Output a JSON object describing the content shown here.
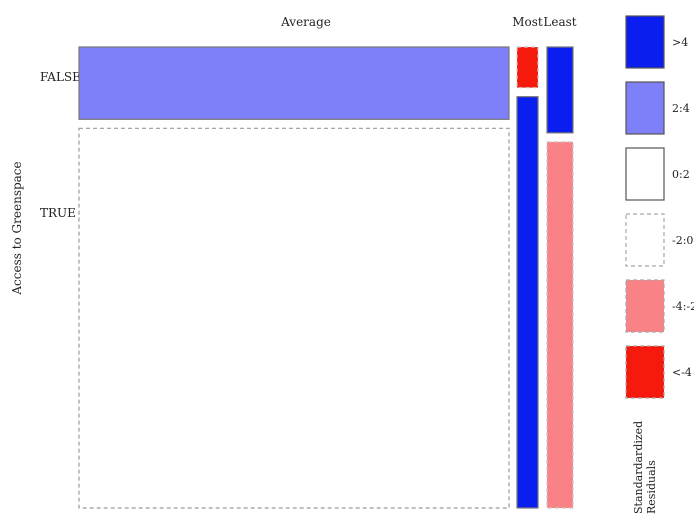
{
  "chart_data": {
    "type": "mosaic",
    "title": "",
    "xlabel": "",
    "ylabel": "Access to Greenspace",
    "x_categories": [
      "Average",
      "Most",
      "Least"
    ],
    "y_categories": [
      "FALSE",
      "TRUE"
    ],
    "column_widths": [
      0.88,
      0.04,
      0.05
    ],
    "cells": [
      {
        "x": "Average",
        "y": "FALSE",
        "proportion": 0.16,
        "residual_class": "2:4"
      },
      {
        "x": "Average",
        "y": "TRUE",
        "proportion": 0.84,
        "residual_class": "-2:0"
      },
      {
        "x": "Most",
        "y": "FALSE",
        "proportion": 0.09,
        "residual_class": "<-4"
      },
      {
        "x": "Most",
        "y": "TRUE",
        "proportion": 0.91,
        "residual_class": ">4"
      },
      {
        "x": "Least",
        "y": "FALSE",
        "proportion": 0.19,
        "residual_class": ">4"
      },
      {
        "x": "Least",
        "y": "TRUE",
        "proportion": 0.81,
        "residual_class": "-4:-2"
      }
    ],
    "legend": {
      "title": "Standardardized Residuals",
      "placement": "right",
      "items": [
        {
          "label": ">4",
          "color": "#0a1ef0",
          "border": "solid"
        },
        {
          "label": "2:4",
          "color": "#7d80f8",
          "border": "solid"
        },
        {
          "label": "0:2",
          "color": "#ffffff",
          "border": "solid"
        },
        {
          "label": "-2:0",
          "color": "#ffffff",
          "border": "dashed"
        },
        {
          "label": "-4:-2",
          "color": "#f88286",
          "border": "dashed"
        },
        {
          "label": "<-4",
          "color": "#f51a0c",
          "border": "dashed"
        }
      ]
    }
  }
}
